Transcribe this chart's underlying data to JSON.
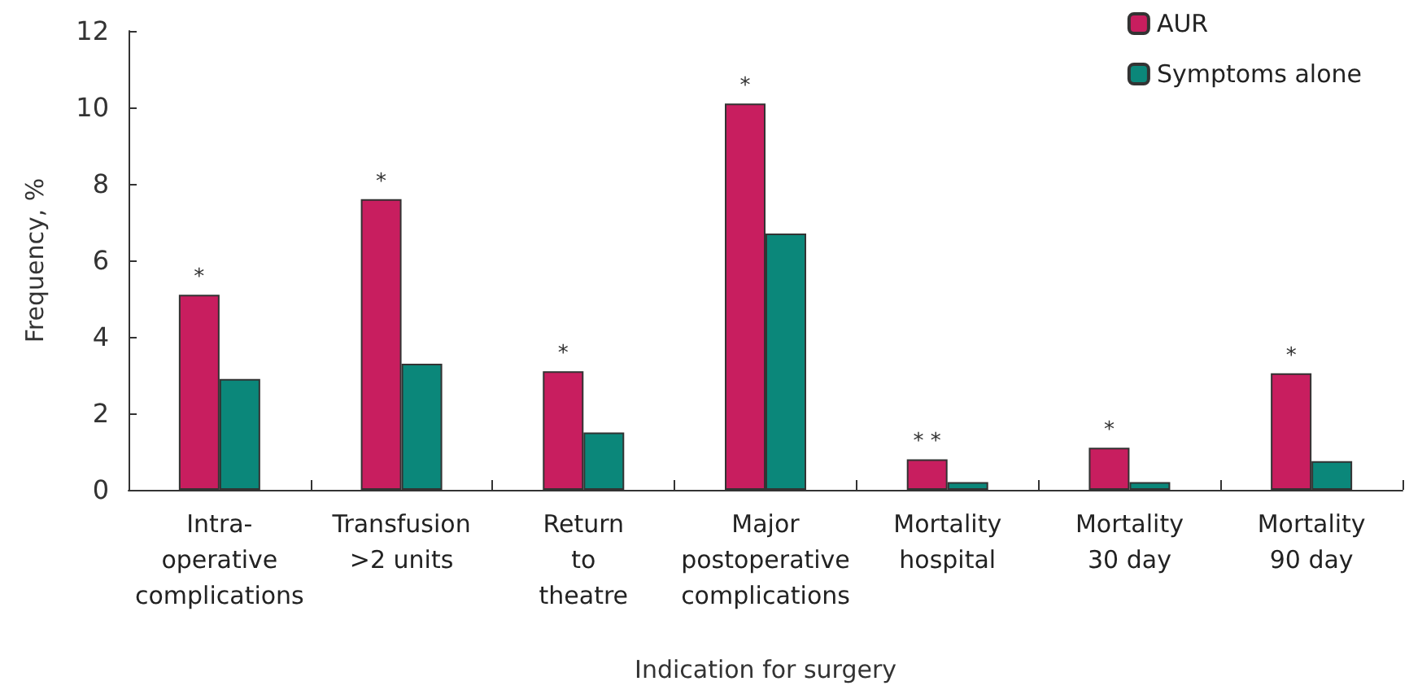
{
  "chart_data": {
    "type": "bar",
    "xlabel": "Indication for surgery",
    "ylabel": "Frequency, %",
    "categories": [
      "Intra-\noperative\ncomplications",
      "Transfusion\n>2 units",
      "Return\nto\ntheatre",
      "Major\npostoperative\ncomplications",
      "Mortality\nhospital",
      "Mortality\n30 day",
      "Mortality\n90 day"
    ],
    "series": [
      {
        "name": "AUR",
        "color": "#c81e5f",
        "values": [
          5.1,
          7.6,
          3.1,
          10.1,
          0.8,
          1.1,
          3.05
        ]
      },
      {
        "name": "Symptoms alone",
        "color": "#0b877a",
        "values": [
          2.9,
          3.3,
          1.5,
          6.7,
          0.2,
          0.2,
          0.75
        ]
      }
    ],
    "annotations": [
      {
        "text": "*",
        "x": "Intra-\noperative\ncomplications",
        "y": 5.1
      },
      {
        "text": "*",
        "x": "Transfusion\n>2 units",
        "y": 7.6
      },
      {
        "text": "*",
        "x": "Return\nto\ntheatre",
        "y": 3.1
      },
      {
        "text": "*",
        "x": "Major\npostoperative\ncomplications",
        "y": 10.1
      },
      {
        "text": "* *",
        "x": "Mortality\nhospital",
        "y": 0.8
      },
      {
        "text": "*",
        "x": "Mortality\n30 day",
        "y": 1.1
      },
      {
        "text": "*",
        "x": "Mortality\n90 day",
        "y": 3.05
      }
    ],
    "ylim": [
      0,
      12
    ],
    "yticks": [
      0,
      2,
      4,
      6,
      8,
      10,
      12
    ],
    "grid": false,
    "legend": "top right"
  }
}
